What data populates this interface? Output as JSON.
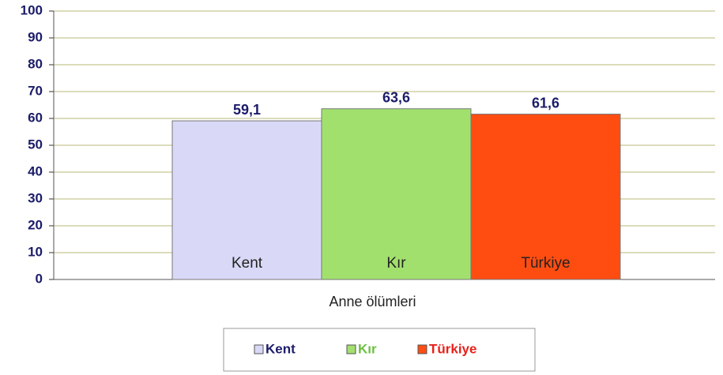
{
  "chart_data": {
    "type": "bar",
    "categories": [
      "Anne ölümleri"
    ],
    "series": [
      {
        "name": "Kent",
        "color": "#d9d9f7",
        "values": [
          59.1
        ],
        "value_labels": [
          "59,1"
        ]
      },
      {
        "name": "Kır",
        "color": "#a2e06e",
        "values": [
          63.6
        ],
        "value_labels": [
          "63,6"
        ]
      },
      {
        "name": "Türkiye",
        "color": "#ff4d12",
        "values": [
          61.6
        ],
        "value_labels": [
          "61,6"
        ]
      }
    ],
    "ylim": [
      0,
      100
    ],
    "yticks": [
      0,
      10,
      20,
      30,
      40,
      50,
      60,
      70,
      80,
      90,
      100
    ],
    "grid": true,
    "legend": "bottom"
  }
}
